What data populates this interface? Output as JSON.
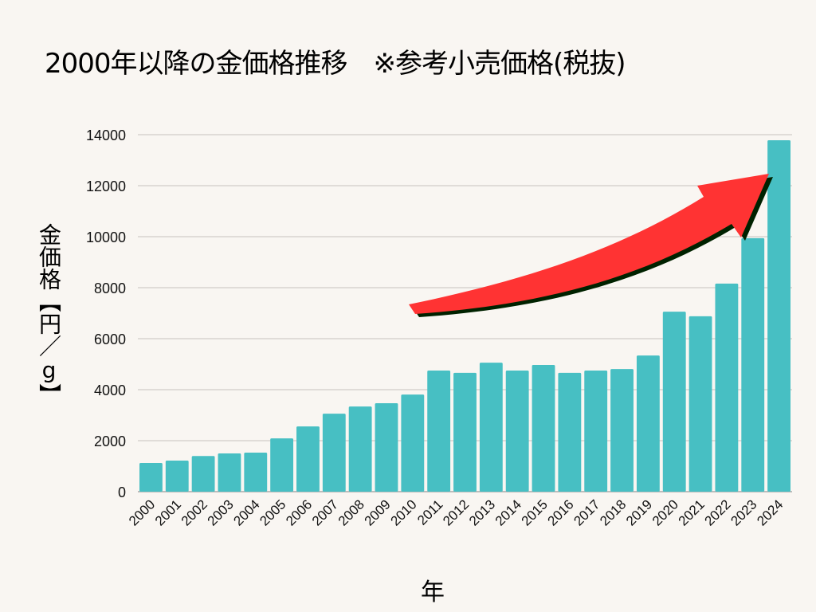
{
  "chart_data": {
    "type": "bar",
    "title": "2000年以降の金価格推移　※参考小売価格(税抜)",
    "xlabel": "年",
    "ylabel": "金価格【円／g】",
    "categories": [
      "2000",
      "2001",
      "2002",
      "2003",
      "2004",
      "2005",
      "2006",
      "2007",
      "2008",
      "2009",
      "2010",
      "2011",
      "2012",
      "2013",
      "2014",
      "2015",
      "2016",
      "2017",
      "2018",
      "2019",
      "2020",
      "2021",
      "2022",
      "2023",
      "2024"
    ],
    "values": [
      1125,
      1220,
      1400,
      1500,
      1530,
      2090,
      2560,
      3060,
      3340,
      3470,
      3810,
      4750,
      4660,
      5060,
      4750,
      4970,
      4660,
      4750,
      4810,
      5340,
      7060,
      6880,
      8160,
      9940,
      13780
    ],
    "ylim": [
      0,
      14000
    ],
    "yticks": [
      "0",
      "2000",
      "4000",
      "6000",
      "8000",
      "10000",
      "12000",
      "14000"
    ],
    "grid": true,
    "annotations": [
      "red upward trend arrow"
    ],
    "colors": {
      "bar": "#47bfc3",
      "arrow": "#ff3333",
      "arrow_shadow": "#002200",
      "grid": "#d8d4cf",
      "axis": "#aaaaaa"
    }
  }
}
